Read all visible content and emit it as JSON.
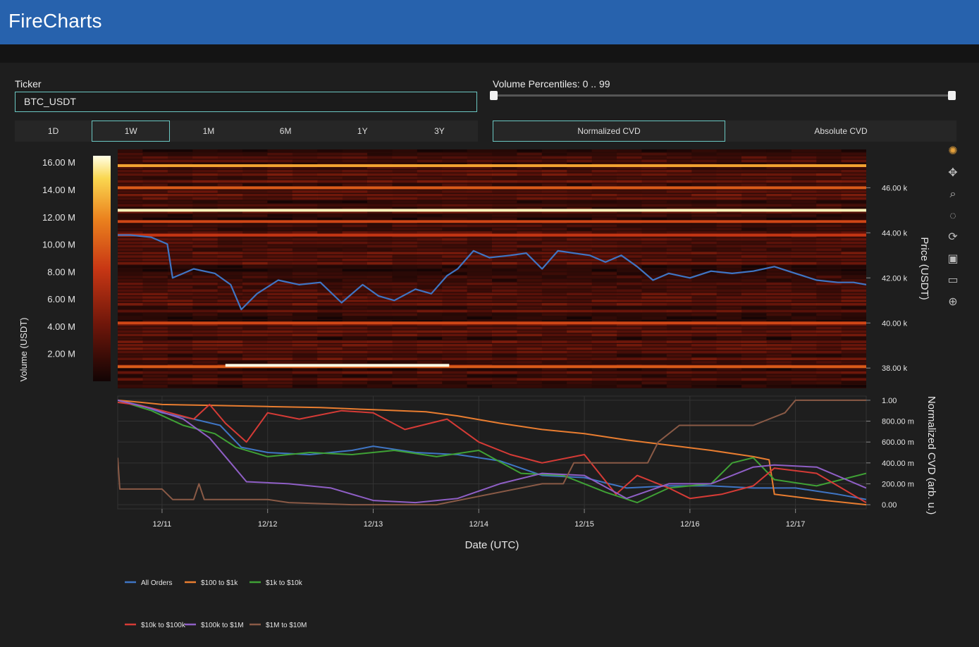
{
  "app": {
    "title": "FireCharts"
  },
  "ticker": {
    "label": "Ticker",
    "value": "BTC_USDT"
  },
  "ranges": [
    "1D",
    "1W",
    "1M",
    "6M",
    "1Y",
    "3Y"
  ],
  "active_range": "1W",
  "volume_percentiles": {
    "label": "Volume Percentiles: 0 .. 99",
    "min": 0,
    "max": 99
  },
  "cvd_modes": [
    "Normalized CVD",
    "Absolute CVD"
  ],
  "active_cvd_mode": "Normalized CVD",
  "modebar_icons": [
    "plotly-logo-icon",
    "pan-icon",
    "zoom-icon",
    "lasso-icon",
    "reset-icon",
    "save-icon",
    "comment-icon",
    "crosshair-icon"
  ],
  "colors": {
    "accent": "#6bc7c2",
    "header": "#2762ad",
    "price_line": "#3f75c4"
  },
  "chart_data": [
    {
      "type": "heatmap",
      "title": "",
      "xlabel": "",
      "ylabel": "Price (USDT)",
      "ylim": [
        37100,
        47700
      ],
      "y_ticks": [
        "38.00 k",
        "40.00 k",
        "42.00 k",
        "44.00 k",
        "46.00 k"
      ],
      "y_tick_values": [
        38000,
        40000,
        42000,
        44000,
        46000
      ],
      "colorbar": {
        "label": "Volume (USDT)",
        "ticks": [
          "2.00 M",
          "4.00 M",
          "6.00 M",
          "8.00 M",
          "10.00 M",
          "12.00 M",
          "14.00 M",
          "16.00 M"
        ],
        "tick_values": [
          2,
          4,
          6,
          8,
          10,
          12,
          14,
          16
        ],
        "range": [
          0,
          16.5
        ]
      },
      "bright_levels": [
        {
          "price": 46980,
          "t0": 10.55,
          "t1": 17.67,
          "volume_m": 13
        },
        {
          "price": 46000,
          "t0": 10.55,
          "t1": 17.67,
          "volume_m": 10
        },
        {
          "price": 45000,
          "t0": 10.55,
          "t1": 17.67,
          "volume_m": 16
        },
        {
          "price": 44500,
          "t0": 10.55,
          "t1": 17.67,
          "volume_m": 9
        },
        {
          "price": 43900,
          "t0": 10.55,
          "t1": 17.67,
          "volume_m": 8
        },
        {
          "price": 40000,
          "t0": 10.55,
          "t1": 17.67,
          "volume_m": 9
        },
        {
          "price": 38060,
          "t0": 10.55,
          "t1": 17.67,
          "volume_m": 10
        },
        {
          "price": 38120,
          "t0": 11.6,
          "t1": 13.72,
          "volume_m": 16.5
        }
      ],
      "series": [
        {
          "name": "Price",
          "x": [
            10.55,
            10.7,
            10.9,
            11.05,
            11.1,
            11.3,
            11.5,
            11.65,
            11.75,
            11.9,
            12.1,
            12.3,
            12.5,
            12.7,
            12.9,
            13.05,
            13.2,
            13.4,
            13.55,
            13.7,
            13.8,
            13.95,
            14.1,
            14.3,
            14.45,
            14.6,
            14.75,
            14.9,
            15.05,
            15.2,
            15.35,
            15.5,
            15.65,
            15.8,
            16.0,
            16.2,
            16.4,
            16.6,
            16.8,
            17.0,
            17.2,
            17.4,
            17.55,
            17.67
          ],
          "y": [
            43900,
            43900,
            43800,
            43500,
            42000,
            42400,
            42200,
            41700,
            40600,
            41300,
            41900,
            41700,
            41800,
            40900,
            41700,
            41200,
            41000,
            41500,
            41300,
            42100,
            42400,
            43200,
            42900,
            43000,
            43100,
            42400,
            43200,
            43100,
            43000,
            42700,
            43000,
            42500,
            41900,
            42200,
            42000,
            42300,
            42200,
            42300,
            42500,
            42200,
            41900,
            41800,
            41800,
            41700
          ]
        }
      ]
    },
    {
      "type": "line",
      "title": "",
      "xlabel": "Date (UTC)",
      "ylabel": "Normalized CVD (arb. u.)",
      "ylim": [
        -0.04,
        1.04
      ],
      "x_ticks": [
        "12/11",
        "12/12",
        "12/13",
        "12/14",
        "12/15",
        "12/16",
        "12/17"
      ],
      "x_tick_values": [
        11,
        12,
        13,
        14,
        15,
        16,
        17
      ],
      "xlim": [
        10.58,
        17.67
      ],
      "y_ticks": [
        "0.00",
        "200.00 m",
        "400.00 m",
        "600.00 m",
        "800.00 m",
        "1.00"
      ],
      "y_tick_values": [
        0,
        0.2,
        0.4,
        0.6,
        0.8,
        1.0
      ],
      "legend_position": "bottom-left",
      "series": [
        {
          "name": "All Orders",
          "color": "#3f75c4",
          "x": [
            10.58,
            10.8,
            11.0,
            11.3,
            11.55,
            11.75,
            12.0,
            12.4,
            12.8,
            13.0,
            13.4,
            13.8,
            14.2,
            14.6,
            15.0,
            15.4,
            15.8,
            16.2,
            16.6,
            17.0,
            17.4,
            17.67
          ],
          "y": [
            1.0,
            0.95,
            0.88,
            0.82,
            0.76,
            0.55,
            0.5,
            0.48,
            0.52,
            0.56,
            0.5,
            0.48,
            0.42,
            0.28,
            0.26,
            0.16,
            0.18,
            0.18,
            0.16,
            0.16,
            0.1,
            0.05
          ]
        },
        {
          "name": "$100 to $1k",
          "color": "#e97d30",
          "x": [
            10.58,
            10.8,
            11.0,
            11.5,
            12.0,
            12.5,
            13.0,
            13.5,
            13.8,
            14.2,
            14.6,
            15.0,
            15.4,
            15.8,
            16.2,
            16.6,
            16.75,
            16.8,
            17.2,
            17.67
          ],
          "y": [
            1.0,
            0.98,
            0.96,
            0.95,
            0.94,
            0.93,
            0.91,
            0.89,
            0.85,
            0.78,
            0.72,
            0.68,
            0.62,
            0.57,
            0.52,
            0.46,
            0.43,
            0.1,
            0.05,
            0.0
          ]
        },
        {
          "name": "$1k to $10k",
          "color": "#3fa135",
          "x": [
            10.58,
            10.9,
            11.2,
            11.5,
            11.7,
            12.0,
            12.4,
            12.8,
            13.2,
            13.6,
            14.0,
            14.4,
            14.8,
            15.2,
            15.5,
            15.8,
            16.2,
            16.4,
            16.6,
            16.8,
            17.2,
            17.67
          ],
          "y": [
            1.0,
            0.9,
            0.76,
            0.68,
            0.55,
            0.46,
            0.5,
            0.48,
            0.52,
            0.46,
            0.52,
            0.3,
            0.28,
            0.12,
            0.02,
            0.16,
            0.2,
            0.4,
            0.45,
            0.24,
            0.18,
            0.3
          ]
        },
        {
          "name": "$10k to $100k",
          "color": "#d63b36",
          "x": [
            10.58,
            10.8,
            11.0,
            11.3,
            11.45,
            11.6,
            11.8,
            12.0,
            12.3,
            12.7,
            13.0,
            13.3,
            13.7,
            14.0,
            14.3,
            14.6,
            15.0,
            15.3,
            15.5,
            15.8,
            16.0,
            16.3,
            16.6,
            16.8,
            17.2,
            17.67
          ],
          "y": [
            0.98,
            0.95,
            0.9,
            0.82,
            0.96,
            0.78,
            0.6,
            0.88,
            0.82,
            0.9,
            0.88,
            0.72,
            0.82,
            0.6,
            0.48,
            0.4,
            0.48,
            0.1,
            0.28,
            0.16,
            0.06,
            0.1,
            0.18,
            0.35,
            0.3,
            0.02
          ]
        },
        {
          "name": "$100k to $1M",
          "color": "#8f5fc6",
          "x": [
            10.58,
            10.9,
            11.2,
            11.45,
            11.65,
            11.8,
            12.2,
            12.6,
            13.0,
            13.4,
            13.8,
            14.2,
            14.6,
            15.0,
            15.4,
            15.8,
            16.2,
            16.6,
            16.8,
            17.2,
            17.67
          ],
          "y": [
            1.0,
            0.92,
            0.82,
            0.64,
            0.4,
            0.22,
            0.2,
            0.16,
            0.04,
            0.02,
            0.06,
            0.2,
            0.3,
            0.28,
            0.06,
            0.2,
            0.2,
            0.36,
            0.38,
            0.36,
            0.16
          ]
        },
        {
          "name": "$1M to $10M",
          "color": "#8a5a46",
          "x": [
            10.58,
            10.6,
            10.7,
            11.0,
            11.1,
            11.3,
            11.35,
            11.4,
            12.0,
            12.2,
            12.8,
            13.6,
            14.6,
            14.8,
            14.9,
            15.6,
            15.7,
            15.9,
            16.6,
            16.9,
            17.0,
            17.67
          ],
          "y": [
            0.45,
            0.15,
            0.15,
            0.15,
            0.05,
            0.05,
            0.2,
            0.05,
            0.05,
            0.02,
            0.0,
            0.0,
            0.2,
            0.2,
            0.4,
            0.4,
            0.6,
            0.76,
            0.76,
            0.88,
            1.0,
            1.0
          ]
        }
      ]
    }
  ]
}
